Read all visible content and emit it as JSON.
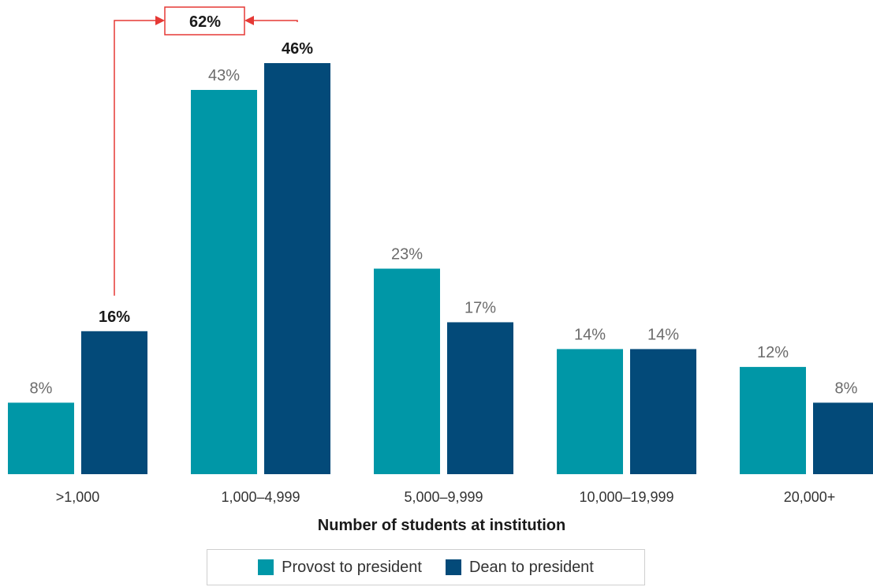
{
  "chart_data": {
    "type": "bar",
    "categories": [
      ">1,000",
      "1,000–4,999",
      "5,000–9,999",
      "10,000–19,999",
      "20,000+"
    ],
    "series": [
      {
        "name": "Provost to president",
        "color": "#0097a7",
        "values": [
          8,
          43,
          23,
          14,
          12
        ],
        "labels": [
          "8%",
          "43%",
          "23%",
          "14%",
          "12%"
        ]
      },
      {
        "name": "Dean to president",
        "color": "#034a79",
        "values": [
          16,
          46,
          17,
          14,
          8
        ],
        "labels": [
          "16%",
          "46%",
          "17%",
          "14%",
          "8%"
        ]
      }
    ],
    "xlabel": "Number of students at institution",
    "ylim": [
      0,
      46
    ],
    "grid": false,
    "legend_position": "bottom",
    "emphasized_labels": [
      "16%",
      "46%"
    ],
    "annotation": {
      "text": "62%",
      "color": "#e53935",
      "connects": [
        ">1,000",
        "1,000–4,999"
      ],
      "series": "Dean to president"
    }
  }
}
